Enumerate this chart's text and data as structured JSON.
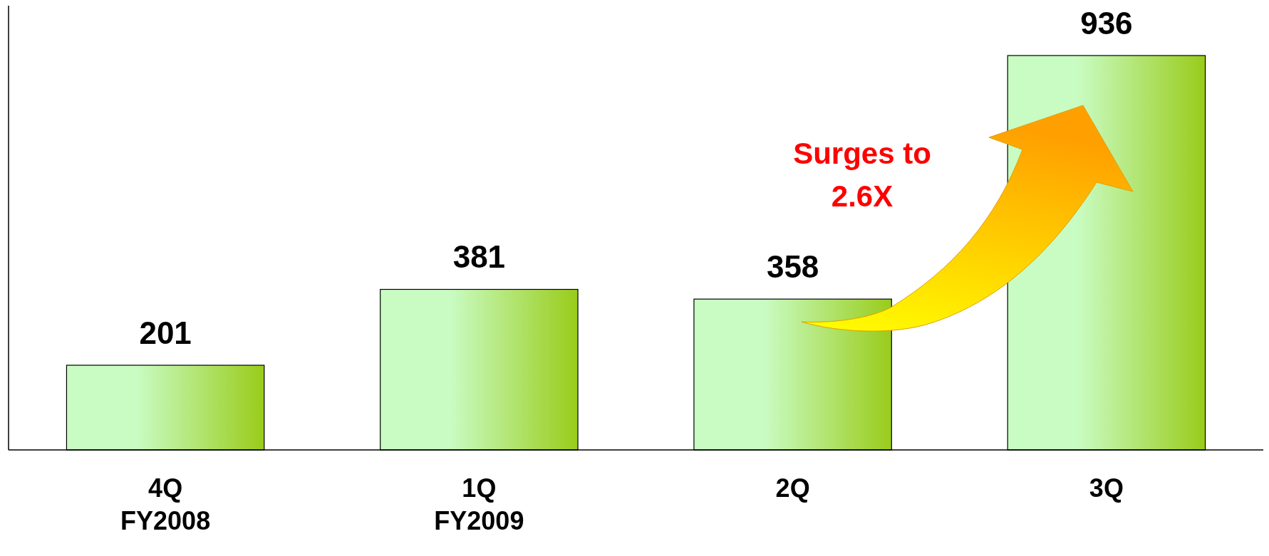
{
  "chart_data": {
    "type": "bar",
    "categories": [
      "4Q\nFY2008",
      "1Q\nFY2009",
      "2Q",
      "3Q"
    ],
    "values": [
      201,
      381,
      358,
      936
    ],
    "color": "#99cc1a",
    "data_labels": true,
    "annotations": [
      "Surges to\n2.6X"
    ]
  }
}
